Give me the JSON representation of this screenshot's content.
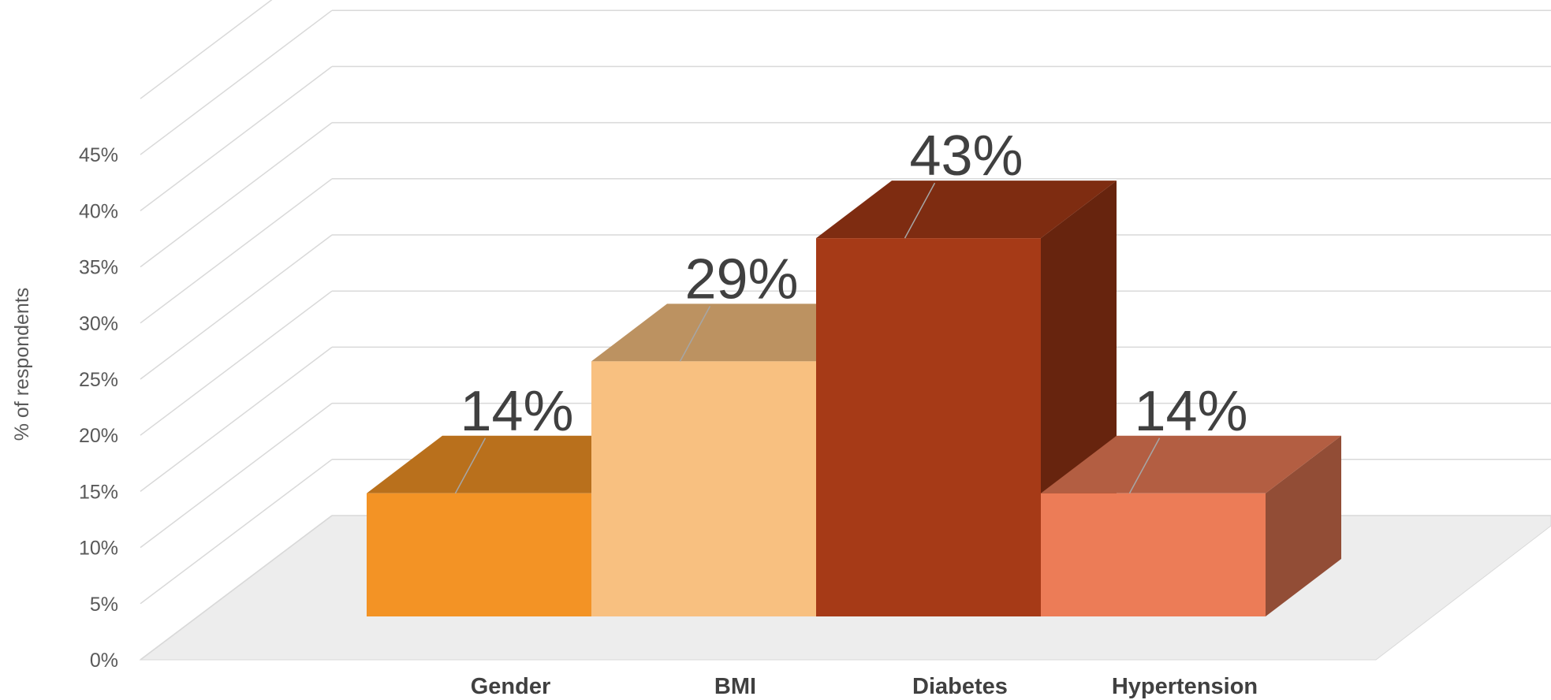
{
  "chart_data": {
    "type": "bar",
    "style": "3d-column",
    "categories": [
      "Gender",
      "BMI",
      "Diabetes",
      "Hypertension"
    ],
    "values": [
      14,
      29,
      43,
      14
    ],
    "data_labels": [
      "14%",
      "29%",
      "43%",
      "14%"
    ],
    "colors": [
      "#F39325",
      "#F8C080",
      "#A63A17",
      "#EC7C57"
    ],
    "title": "",
    "xlabel": "",
    "ylabel": "% of respondents",
    "ylim": [
      0,
      45
    ],
    "yticks": [
      "0%",
      "5%",
      "10%",
      "15%",
      "20%",
      "25%",
      "30%",
      "35%",
      "40%",
      "45%"
    ],
    "grid": true,
    "legend": "none"
  }
}
